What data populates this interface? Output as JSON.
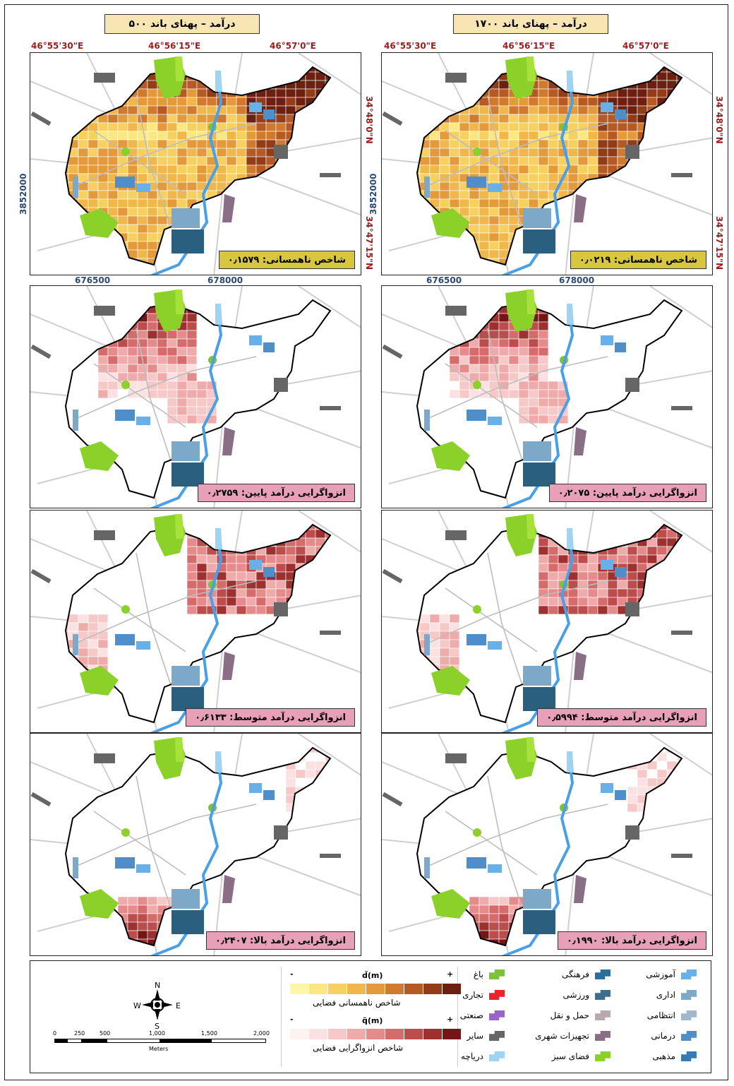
{
  "maps": {
    "left_title": "درآمد – پهنای باند ۵۰۰",
    "right_title": "درآمد – پهنای باند ۱۷۰۰",
    "lon_labels": [
      "46°55'30\"E",
      "46°56'15\"E",
      "46°57'0\"E"
    ],
    "lat_labels": [
      "34°48'0\"N",
      "34°47'15\"N"
    ],
    "northing": "3852000",
    "eastings": [
      "676500",
      "678000"
    ],
    "left_panels": [
      {
        "label": "شاخص ناهمسانی: ۰٫۱۵۷۹",
        "style": "segregation"
      },
      {
        "label": "انزواگرایی درآمد پایین: ۰٫۲۷۵۹",
        "style": "low"
      },
      {
        "label": "انزواگرایی درآمد متوسط: ۰٫۶۱۳۳",
        "style": "mid"
      },
      {
        "label": "انزواگرایی درآمد بالا: ۰٫۲۴۰۷",
        "style": "high"
      }
    ],
    "right_panels": [
      {
        "label": "شاخص ناهمسانی: ۰٫۰۲۱۹",
        "style": "segregation"
      },
      {
        "label": "انزواگرایی درآمد پایین: ۰٫۲۰۷۵",
        "style": "low"
      },
      {
        "label": "انزواگرایی درآمد متوسط: ۰٫۵۹۹۴",
        "style": "mid"
      },
      {
        "label": "انزواگرایی درآمد بالا: ۰٫۱۹۹۰",
        "style": "high"
      }
    ]
  },
  "legend": {
    "ramp1": {
      "symbol": "d̃(m)",
      "caption": "شاخص ناهمسانی فضایی",
      "minus": "-",
      "plus": "+",
      "colors": [
        "#fff6a8",
        "#fce782",
        "#f7d160",
        "#f0b84a",
        "#e39a3a",
        "#cf7a2e",
        "#b45a22",
        "#933c18",
        "#6e2010"
      ]
    },
    "ramp2": {
      "symbol": "q̃(m)",
      "caption": "شاخص انزواگرایی فضایی",
      "minus": "-",
      "plus": "+",
      "colors": [
        "#fdf3f3",
        "#fbe1e1",
        "#f7c8c8",
        "#efaaaa",
        "#e58b8b",
        "#d46c6c",
        "#bd4d4d",
        "#9e3030",
        "#741616"
      ]
    },
    "landuse": [
      {
        "name": "باغ",
        "color": "#7ec23a"
      },
      {
        "name": "تجاری",
        "color": "#e8262a"
      },
      {
        "name": "صنعتی",
        "color": "#9b64c8"
      },
      {
        "name": "سایر",
        "color": "#666666"
      },
      {
        "name": "دریاچه",
        "color": "#9fd3f2"
      },
      {
        "name": "فرهنگی",
        "color": "#2e6f9a"
      },
      {
        "name": "ورزشی",
        "color": "#3a6f8e"
      },
      {
        "name": "حمل و نقل",
        "color": "#b8a8b0"
      },
      {
        "name": "تجهیزات شهری",
        "color": "#8a6e86"
      },
      {
        "name": "فضای سبز",
        "color": "#8bd12a"
      },
      {
        "name": "آموزشی",
        "color": "#6ab0e8"
      },
      {
        "name": "اداری",
        "color": "#7ea8c8"
      },
      {
        "name": "انتظامی",
        "color": "#9fb8cc"
      },
      {
        "name": "درمانی",
        "color": "#4f8ec8"
      },
      {
        "name": "مذهبی",
        "color": "#3a78b0"
      }
    ],
    "scale_ticks": [
      "0",
      "250",
      "500",
      "1,000",
      "1,500",
      "2,000"
    ],
    "scale_unit": "Meters",
    "compass": {
      "n": "N",
      "s": "S",
      "e": "E",
      "w": "W"
    }
  }
}
